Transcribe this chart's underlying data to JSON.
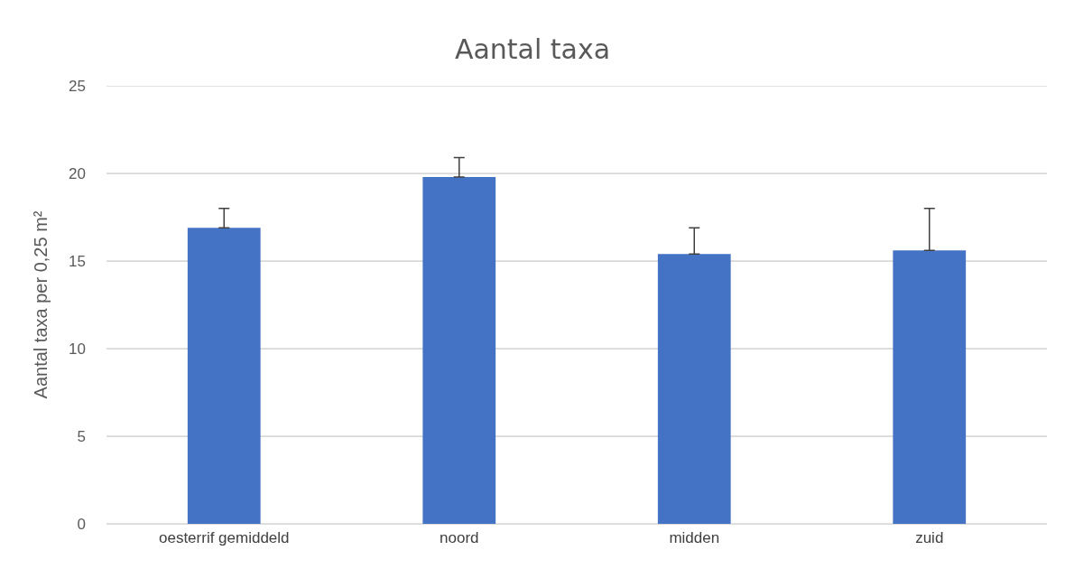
{
  "chart_data": {
    "type": "bar",
    "title": "Aantal taxa",
    "ylabel": "Aantal taxa per 0,25 m²",
    "categories": [
      "oesterrif gemiddeld",
      "noord",
      "midden",
      "zuid"
    ],
    "values": [
      16.9,
      19.8,
      15.4,
      15.6
    ],
    "errors": [
      [
        16.9,
        18.0
      ],
      [
        19.8,
        20.9
      ],
      [
        15.4,
        16.9
      ],
      [
        15.6,
        18.0
      ]
    ],
    "color": "#4472c4",
    "ylim": [
      0,
      25
    ],
    "yticks": [
      0,
      5,
      10,
      15,
      20,
      25
    ],
    "grid": "y"
  }
}
